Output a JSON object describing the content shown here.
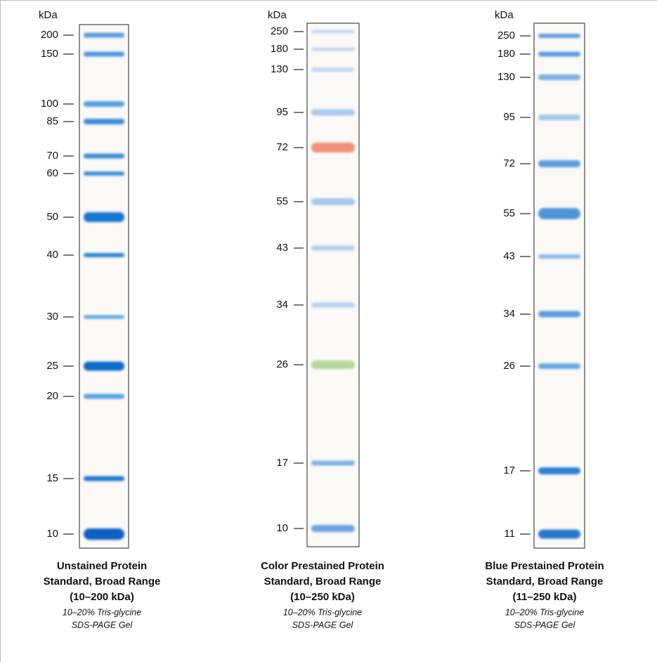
{
  "lanes": [
    {
      "unit": "kDa",
      "markers": [
        "200",
        "150",
        "100",
        "85",
        "70",
        "60",
        "50",
        "40",
        "30",
        "25",
        "20",
        "15",
        "10"
      ],
      "caption": {
        "title": [
          "Unstained Protein",
          "Standard, Broad Range",
          "(10–200 kDa)"
        ],
        "subtitle": [
          "10–20% Tris-glycine",
          "SDS-PAGE Gel"
        ]
      }
    },
    {
      "unit": "kDa",
      "markers": [
        "250",
        "180",
        "130",
        "95",
        "72",
        "55",
        "43",
        "34",
        "26",
        "17",
        "10"
      ],
      "caption": {
        "title": [
          "Color Prestained Protein",
          "Standard, Broad Range",
          "(10–250 kDa)"
        ],
        "subtitle": [
          "10–20% Tris-glycine",
          "SDS-PAGE Gel"
        ]
      }
    },
    {
      "unit": "kDa",
      "markers": [
        "250",
        "180",
        "130",
        "95",
        "72",
        "55",
        "43",
        "34",
        "26",
        "17",
        "11"
      ],
      "caption": {
        "title": [
          "Blue Prestained Protein",
          "Standard, Broad Range",
          "(11–250 kDa)"
        ],
        "subtitle": [
          "10–20% Tris-glycine",
          "SDS-PAGE Gel"
        ]
      }
    }
  ]
}
